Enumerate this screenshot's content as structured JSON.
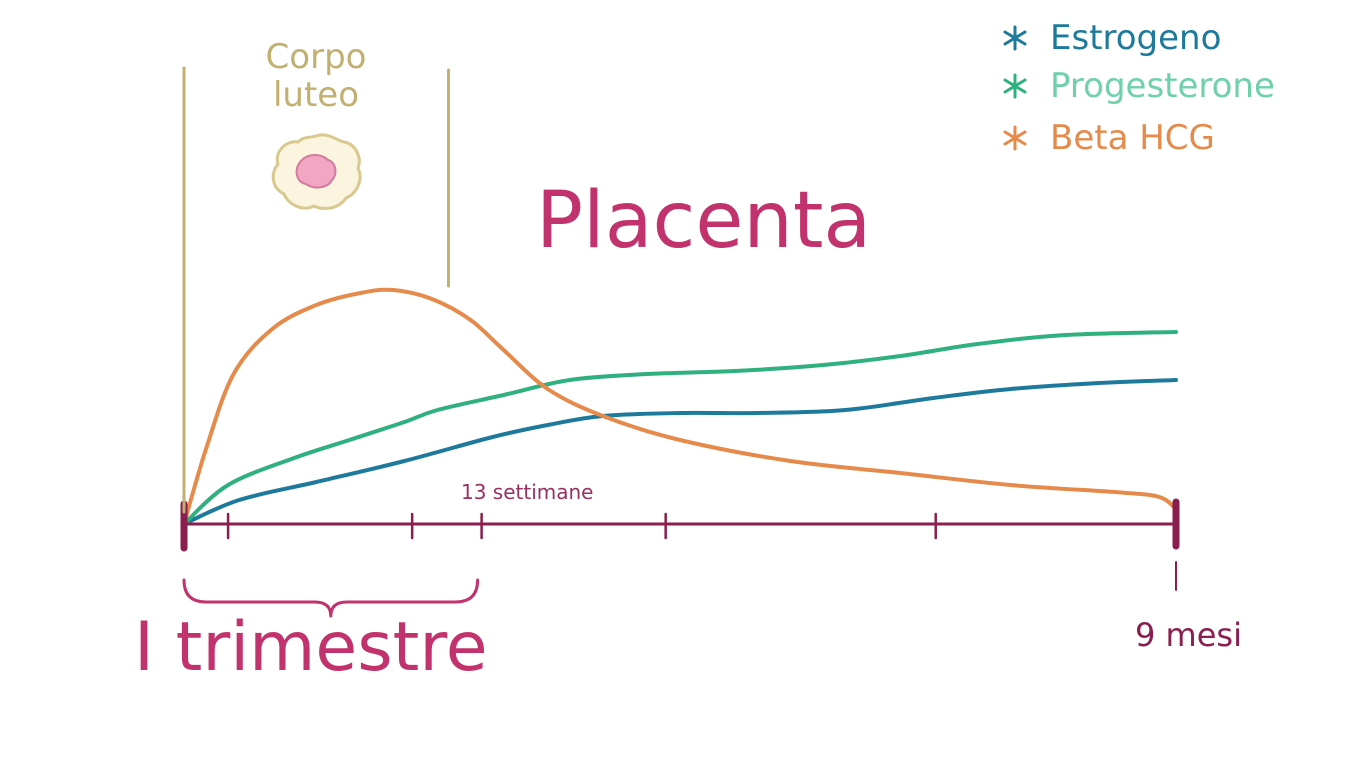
{
  "colors": {
    "estrogeno": "#1e7a9c",
    "progesterone": "#2fb07f",
    "beta_hcg": "#e58a4a",
    "axis": "#8b1e4e",
    "corpo": "#c2b070",
    "accent": "#c2336e",
    "settimane": "#9a3060"
  },
  "labels": {
    "corpo_line1": "Corpo",
    "corpo_line2": "luteo",
    "placenta": "Placenta",
    "trimestre": "I trimestre",
    "settimane": "13 settimane",
    "mesi": "9 mesi"
  },
  "legend": [
    {
      "name": "Estrogeno",
      "color": "#1e7a9c",
      "icon": "asterisk-icon"
    },
    {
      "name": "Progesterone",
      "color": "#2fb07f",
      "icon": "asterisk-icon"
    },
    {
      "name": "Beta HCG",
      "color": "#e58a4a",
      "icon": "asterisk-icon"
    }
  ],
  "chart_data": {
    "type": "line",
    "x_unit": "mesi",
    "xlim": [
      0,
      9
    ],
    "ylim": [
      0,
      100
    ],
    "grid": false,
    "legend_position": "top-right",
    "x_marks": [
      0.4,
      2.07,
      2.7,
      4.37,
      6.82,
      9
    ],
    "x_mark_labels": [
      {
        "x": 2.7,
        "text": "13 settimane"
      },
      {
        "x": 9,
        "text": "9 mesi"
      }
    ],
    "corpo_luteo_span": [
      0,
      2.4
    ],
    "trimestre_span": [
      0,
      2.7
    ],
    "series": [
      {
        "name": "Estrogeno",
        "key": "estrogeno",
        "points": [
          [
            0,
            0
          ],
          [
            0.5,
            8
          ],
          [
            1.2,
            14
          ],
          [
            2,
            21
          ],
          [
            2.8,
            29
          ],
          [
            3.3,
            33
          ],
          [
            3.8,
            36
          ],
          [
            4.5,
            37
          ],
          [
            5.2,
            37
          ],
          [
            6,
            38
          ],
          [
            6.8,
            42
          ],
          [
            7.5,
            45
          ],
          [
            8.3,
            47
          ],
          [
            9,
            48
          ]
        ]
      },
      {
        "name": "Progesterone",
        "key": "progesterone",
        "points": [
          [
            0,
            0
          ],
          [
            0.4,
            13
          ],
          [
            1,
            22
          ],
          [
            1.5,
            28
          ],
          [
            2,
            34
          ],
          [
            2.3,
            38
          ],
          [
            2.9,
            43
          ],
          [
            3.5,
            48
          ],
          [
            4.2,
            50
          ],
          [
            5,
            51
          ],
          [
            5.8,
            53
          ],
          [
            6.5,
            56
          ],
          [
            7.2,
            60
          ],
          [
            8,
            63
          ],
          [
            9,
            64
          ]
        ]
      },
      {
        "name": "Beta HCG",
        "key": "beta_hcg",
        "points": [
          [
            0,
            0
          ],
          [
            0.2,
            25
          ],
          [
            0.45,
            50
          ],
          [
            0.8,
            65
          ],
          [
            1.2,
            73
          ],
          [
            1.6,
            77
          ],
          [
            1.9,
            78
          ],
          [
            2.25,
            75
          ],
          [
            2.6,
            68
          ],
          [
            2.9,
            58
          ],
          [
            3.3,
            45
          ],
          [
            3.8,
            36
          ],
          [
            4.5,
            28
          ],
          [
            5.5,
            21
          ],
          [
            6.5,
            17
          ],
          [
            7.5,
            13
          ],
          [
            8.5,
            10.5
          ],
          [
            8.85,
            9
          ],
          [
            9,
            5
          ]
        ]
      }
    ]
  }
}
